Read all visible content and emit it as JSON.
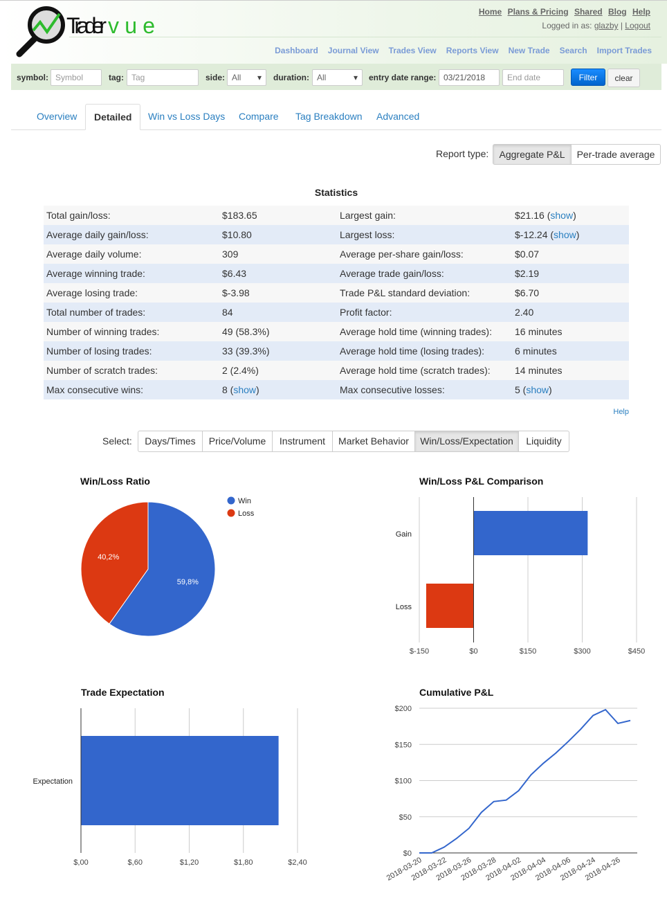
{
  "header": {
    "logo": "Tradervue",
    "top_links": [
      "Home",
      "Plans & Pricing",
      "Shared",
      "Blog",
      "Help"
    ],
    "logged_in_label": "Logged in as:",
    "username": "glazby",
    "logout": "Logout",
    "nav": [
      "Dashboard",
      "Journal View",
      "Trades View",
      "Reports View",
      "New Trade",
      "Search",
      "Import Trades"
    ]
  },
  "filter": {
    "symbol_label": "symbol:",
    "symbol_placeholder": "Symbol",
    "tag_label": "tag:",
    "tag_placeholder": "Tag",
    "side_label": "side:",
    "side_value": "All",
    "duration_label": "duration:",
    "duration_value": "All",
    "date_label": "entry date range:",
    "start_date": "03/21/2018",
    "end_placeholder": "End date",
    "filter_btn": "Filter",
    "clear_btn": "clear"
  },
  "tabs": [
    "Overview",
    "Detailed",
    "Win vs Loss Days",
    "Compare",
    "Tag Breakdown",
    "Advanced"
  ],
  "report_type": {
    "label": "Report type:",
    "options": [
      "Aggregate P&L",
      "Per-trade average"
    ],
    "selected": "Aggregate P&L"
  },
  "statistics": {
    "title": "Statistics",
    "show": "show",
    "rows": [
      [
        "Total gain/loss:",
        "$183.65",
        "Largest gain:",
        "$21.16",
        false,
        true
      ],
      [
        "Average daily gain/loss:",
        "$10.80",
        "Largest loss:",
        "$-12.24",
        false,
        true
      ],
      [
        "Average daily volume:",
        "309",
        "Average per-share gain/loss:",
        "$0.07",
        false,
        false
      ],
      [
        "Average winning trade:",
        "$6.43",
        "Average trade gain/loss:",
        "$2.19",
        false,
        false
      ],
      [
        "Average losing trade:",
        "$-3.98",
        "Trade P&L standard deviation:",
        "$6.70",
        false,
        false
      ],
      [
        "Total number of trades:",
        "84",
        "Profit factor:",
        "2.40",
        false,
        false
      ],
      [
        "Number of winning trades:",
        "49 (58.3%)",
        "Average hold time (winning trades):",
        "16 minutes",
        false,
        false
      ],
      [
        "Number of losing trades:",
        "33 (39.3%)",
        "Average hold time (losing trades):",
        "6 minutes",
        false,
        false
      ],
      [
        "Number of scratch trades:",
        "2 (2.4%)",
        "Average hold time (scratch trades):",
        "14 minutes",
        false,
        false
      ],
      [
        "Max consecutive wins:",
        "8",
        "Max consecutive losses:",
        "5",
        true,
        true
      ]
    ],
    "help": "Help"
  },
  "select": {
    "label": "Select:",
    "options": [
      "Days/Times",
      "Price/Volume",
      "Instrument",
      "Market Behavior",
      "Win/Loss/Expectation",
      "Liquidity"
    ],
    "selected": "Win/Loss/Expectation"
  },
  "colors": {
    "blue": "#3366cc",
    "red": "#dc3912"
  },
  "chart_data": [
    {
      "type": "pie",
      "title": "Win/Loss Ratio",
      "legend": [
        "Win",
        "Loss"
      ],
      "values": [
        59.8,
        40.2
      ],
      "labels": [
        "59,8%",
        "40,2%"
      ],
      "legend_position": "right"
    },
    {
      "type": "bar",
      "title": "Win/Loss P&L Comparison",
      "categories": [
        "Gain",
        "Loss"
      ],
      "values": [
        315,
        -131
      ],
      "xlim": [
        -150,
        450
      ],
      "xticks": [
        "$-150",
        "$0",
        "$150",
        "$300",
        "$450"
      ],
      "orientation": "horizontal"
    },
    {
      "type": "bar",
      "title": "Trade Expectation",
      "categories": [
        "Expectation"
      ],
      "values": [
        2.19
      ],
      "xlim": [
        0,
        2.4
      ],
      "xticks": [
        "$,00",
        "$,60",
        "$1,20",
        "$1,80",
        "$2,40"
      ],
      "orientation": "horizontal"
    },
    {
      "type": "line",
      "title": "Cumulative P&L",
      "values": [
        0,
        0,
        8,
        20,
        34,
        56,
        71,
        73,
        86,
        108,
        124,
        138,
        154,
        171,
        190,
        198,
        179,
        183
      ],
      "xtick_labels": [
        "2018-03-20",
        "2018-03-22",
        "2018-03-26",
        "2018-03-28",
        "2018-04-02",
        "2018-04-04",
        "2018-04-06",
        "2018-04-24",
        "2018-04-26"
      ],
      "ylim": [
        0,
        200
      ],
      "yticks": [
        "$0",
        "$50",
        "$100",
        "$150",
        "$200"
      ]
    }
  ]
}
